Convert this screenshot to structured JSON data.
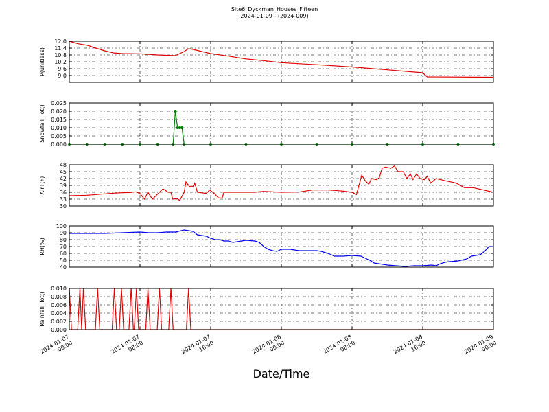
{
  "chart_data": [
    {
      "type": "line",
      "title": "Site6_Dyckman_Houses_Fifteen",
      "subtitle": "2024-01-09 - (2024-009)",
      "ylabel": "P(unitless)",
      "color": "#e00000",
      "grid": true,
      "xlim": [
        "2024-01-07 00:00",
        "2024-01-09 00:00"
      ],
      "xticks": [
        "2024-01-07 00:00",
        "2024-01-07 08:00",
        "2024-01-07 16:00",
        "2024-01-08 00:00",
        "2024-01-08 08:00",
        "2024-01-08 16:00",
        "2024-01-09 00:00"
      ],
      "ylim": [
        8.4,
        12.0
      ],
      "yticks": [
        {
          "value": 9.0,
          "label": "9.0"
        },
        9.6,
        10.2,
        10.8,
        11.4,
        {
          "value": 12.0,
          "label": "12.0"
        }
      ],
      "x": [
        "2024-01-07 00:00",
        "2024-01-07 01:00",
        "2024-01-07 02:00",
        "2024-01-07 03:00",
        "2024-01-07 04:00",
        "2024-01-07 05:00",
        "2024-01-07 06:00",
        "2024-01-07 08:00",
        "2024-01-07 10:00",
        "2024-01-07 12:00",
        "2024-01-07 13:00",
        "2024-01-07 13:30",
        "2024-01-07 14:00",
        "2024-01-07 15:00",
        "2024-01-07 16:00",
        "2024-01-07 18:00",
        "2024-01-07 20:00",
        "2024-01-07 22:00",
        "2024-01-08 00:00",
        "2024-01-08 04:00",
        "2024-01-08 08:00",
        "2024-01-08 12:00",
        "2024-01-08 16:00",
        "2024-01-08 16:30",
        "2024-01-09 00:00"
      ],
      "values": [
        12.0,
        11.78,
        11.65,
        11.4,
        11.16,
        10.98,
        10.92,
        10.9,
        10.8,
        10.74,
        11.1,
        11.35,
        11.28,
        11.1,
        10.92,
        10.7,
        10.45,
        10.3,
        10.12,
        9.95,
        9.75,
        9.5,
        9.24,
        8.88,
        8.85
      ]
    },
    {
      "type": "line",
      "ylabel": "Snowfall_Tot()",
      "color": "#007f00",
      "marker": true,
      "grid": true,
      "xlim": [
        "2024-01-07 00:00",
        "2024-01-09 00:00"
      ],
      "xticks": [
        "2024-01-07 00:00",
        "2024-01-07 08:00",
        "2024-01-07 16:00",
        "2024-01-08 00:00",
        "2024-01-08 08:00",
        "2024-01-08 16:00",
        "2024-01-09 00:00"
      ],
      "ylim": [
        0,
        0.025
      ],
      "yticks": [
        {
          "value": 0,
          "label": "0.000"
        },
        0.005,
        {
          "value": 0.01,
          "label": "0.010"
        },
        0.015,
        {
          "value": 0.02,
          "label": "0.020"
        },
        0.025
      ],
      "x": [
        "2024-01-07 00:00",
        "2024-01-07 02:00",
        "2024-01-07 04:00",
        "2024-01-07 06:00",
        "2024-01-07 08:00",
        "2024-01-07 10:00",
        "2024-01-07 11:45",
        "2024-01-07 12:00",
        "2024-01-07 12:15",
        "2024-01-07 12:30",
        "2024-01-07 12:45",
        "2024-01-07 13:00",
        "2024-01-07 16:00",
        "2024-01-07 20:00",
        "2024-01-08 00:00",
        "2024-01-08 04:00",
        "2024-01-08 08:00",
        "2024-01-08 12:00",
        "2024-01-08 16:00",
        "2024-01-08 20:00",
        "2024-01-09 00:00"
      ],
      "values": [
        0,
        0,
        0,
        0,
        0,
        0,
        0,
        0.02,
        0.01,
        0.01,
        0.01,
        0,
        0,
        0,
        0,
        0,
        0,
        0,
        0,
        0,
        0
      ]
    },
    {
      "type": "line",
      "ylabel": "AirT(F)",
      "color": "#e00000",
      "grid": true,
      "xlim": [
        "2024-01-07 00:00",
        "2024-01-09 00:00"
      ],
      "xticks": [
        "2024-01-07 00:00",
        "2024-01-07 08:00",
        "2024-01-07 16:00",
        "2024-01-08 00:00",
        "2024-01-08 08:00",
        "2024-01-08 16:00",
        "2024-01-09 00:00"
      ],
      "ylim": [
        30,
        48
      ],
      "yticks": [
        30,
        33,
        36,
        39,
        42,
        45,
        48
      ],
      "x": [
        "2024-01-07 00:00",
        "2024-01-07 01:00",
        "2024-01-07 02:00",
        "2024-01-07 03:00",
        "2024-01-07 04:00",
        "2024-01-07 05:00",
        "2024-01-07 06:00",
        "2024-01-07 07:00",
        "2024-01-07 07:30",
        "2024-01-07 08:00",
        "2024-01-07 08:30",
        "2024-01-07 08:54",
        "2024-01-07 09:24",
        "2024-01-07 09:48",
        "2024-01-07 10:12",
        "2024-01-07 10:36",
        "2024-01-07 11:12",
        "2024-01-07 11:30",
        "2024-01-07 11:42",
        "2024-01-07 12:12",
        "2024-01-07 12:30",
        "2024-01-07 13:00",
        "2024-01-07 13:12",
        "2024-01-07 13:36",
        "2024-01-07 14:00",
        "2024-01-07 14:12",
        "2024-01-07 14:30",
        "2024-01-07 15:30",
        "2024-01-07 15:54",
        "2024-01-07 16:24",
        "2024-01-07 16:54",
        "2024-01-07 17:18",
        "2024-01-07 17:30",
        "2024-01-07 19:00",
        "2024-01-07 21:00",
        "2024-01-07 22:00",
        "2024-01-08 00:00",
        "2024-01-08 02:00",
        "2024-01-08 03:30",
        "2024-01-08 05:24",
        "2024-01-08 07:00",
        "2024-01-08 08:00",
        "2024-01-08 08:30",
        "2024-01-08 09:06",
        "2024-01-08 09:30",
        "2024-01-08 09:54",
        "2024-01-08 10:12",
        "2024-01-08 10:48",
        "2024-01-08 11:06",
        "2024-01-08 11:24",
        "2024-01-08 11:48",
        "2024-01-08 12:24",
        "2024-01-08 12:48",
        "2024-01-08 13:12",
        "2024-01-08 13:48",
        "2024-01-08 14:12",
        "2024-01-08 14:36",
        "2024-01-08 14:54",
        "2024-01-08 15:18",
        "2024-01-08 15:42",
        "2024-01-08 16:12",
        "2024-01-08 16:30",
        "2024-01-08 16:54",
        "2024-01-08 17:30",
        "2024-01-08 18:36",
        "2024-01-08 19:48",
        "2024-01-08 20:42",
        "2024-01-08 21:42",
        "2024-01-08 22:54",
        "2024-01-09 00:00"
      ],
      "values": [
        34.5,
        34.6,
        34.7,
        35,
        35.3,
        35.6,
        35.8,
        35.9,
        36.2,
        35.5,
        33,
        36,
        33,
        34.5,
        36,
        37.5,
        36,
        36,
        33,
        33.2,
        32.5,
        36,
        40.5,
        38.5,
        38.5,
        40,
        36,
        35.5,
        37,
        35.5,
        33.5,
        33.5,
        36,
        36,
        36,
        36.4,
        36,
        36.1,
        37,
        37,
        36.5,
        36,
        35,
        43.5,
        41,
        39.5,
        42,
        41.5,
        42.5,
        46.5,
        47,
        46.5,
        47.5,
        45,
        45,
        42,
        44,
        41.5,
        44,
        42,
        41.5,
        43,
        40,
        42,
        41,
        40,
        38,
        38,
        37,
        36
      ]
    },
    {
      "type": "line",
      "ylabel": "RH(%)",
      "color": "#0000ee",
      "grid": true,
      "xlim": [
        "2024-01-07 00:00",
        "2024-01-09 00:00"
      ],
      "xticks": [
        "2024-01-07 00:00",
        "2024-01-07 08:00",
        "2024-01-07 16:00",
        "2024-01-08 00:00",
        "2024-01-08 08:00",
        "2024-01-08 16:00",
        "2024-01-09 00:00"
      ],
      "ylim": [
        40,
        100
      ],
      "yticks": [
        40,
        50,
        60,
        70,
        80,
        90,
        100
      ],
      "x": [
        "2024-01-07 00:00",
        "2024-01-07 04:00",
        "2024-01-07 08:00",
        "2024-01-07 09:00",
        "2024-01-07 10:00",
        "2024-01-07 11:00",
        "2024-01-07 12:00",
        "2024-01-07 13:00",
        "2024-01-07 14:00",
        "2024-01-07 14:30",
        "2024-01-07 15:30",
        "2024-01-07 16:00",
        "2024-01-07 16:30",
        "2024-01-07 17:00",
        "2024-01-07 17:30",
        "2024-01-07 18:00",
        "2024-01-07 18:30",
        "2024-01-07 19:00",
        "2024-01-07 20:00",
        "2024-01-07 21:00",
        "2024-01-07 21:30",
        "2024-01-07 22:00",
        "2024-01-07 22:30",
        "2024-01-07 23:00",
        "2024-01-07 23:30",
        "2024-01-08 00:00",
        "2024-01-08 01:00",
        "2024-01-08 02:00",
        "2024-01-08 04:00",
        "2024-01-08 04:30",
        "2024-01-08 05:00",
        "2024-01-08 05:30",
        "2024-01-08 06:00",
        "2024-01-08 07:00",
        "2024-01-08 08:00",
        "2024-01-08 09:00",
        "2024-01-08 09:30",
        "2024-01-08 10:00",
        "2024-01-08 10:30",
        "2024-01-08 11:00",
        "2024-01-08 11:30",
        "2024-01-08 12:00",
        "2024-01-08 13:00",
        "2024-01-08 14:00",
        "2024-01-08 15:00",
        "2024-01-08 16:00",
        "2024-01-08 17:00",
        "2024-01-08 17:30",
        "2024-01-08 18:00",
        "2024-01-08 18:30",
        "2024-01-08 19:00",
        "2024-01-08 20:00",
        "2024-01-08 21:00",
        "2024-01-08 21:30",
        "2024-01-08 22:00",
        "2024-01-08 22:30",
        "2024-01-08 23:00",
        "2024-01-08 23:30",
        "2024-01-09 00:00"
      ],
      "values": [
        89,
        89,
        91,
        90,
        90,
        91,
        91,
        94,
        92,
        87,
        85,
        82,
        80,
        80,
        78,
        78,
        76,
        77,
        79,
        78,
        76,
        70,
        66,
        64,
        63,
        66,
        66,
        64,
        64,
        63,
        61,
        59,
        56,
        56,
        57,
        56,
        53,
        50,
        46,
        45,
        44,
        43,
        42,
        41,
        42,
        42,
        43,
        42,
        45,
        47,
        48,
        49,
        52,
        56,
        57,
        58,
        63,
        70,
        70
      ]
    },
    {
      "type": "line",
      "ylabel": "Rainfall_Tot()",
      "xlabel": "Date/Time",
      "color": "#e00000",
      "grid": true,
      "xlim": [
        "2024-01-07 00:00",
        "2024-01-09 00:00"
      ],
      "xticks": [
        "2024-01-07 00:00",
        "2024-01-07 08:00",
        "2024-01-07 16:00",
        "2024-01-08 00:00",
        "2024-01-08 08:00",
        "2024-01-08 16:00",
        "2024-01-09 00:00"
      ],
      "ylim": [
        0,
        0.01
      ],
      "yticks": [
        {
          "value": 0,
          "label": "0.000"
        },
        {
          "value": 0.002,
          "label": "0.002"
        },
        {
          "value": 0.004,
          "label": "0.004"
        },
        {
          "value": 0.006,
          "label": "0.006"
        },
        {
          "value": 0.008,
          "label": "0.008"
        },
        {
          "value": 0.01,
          "label": "0.010"
        }
      ],
      "x": [
        "2024-01-07 00:00",
        "2024-01-07 00:15",
        "2024-01-07 00:57",
        "2024-01-07 01:12",
        "2024-01-07 01:24",
        "2024-01-07 01:36",
        "2024-01-07 01:51",
        "2024-01-07 02:57",
        "2024-01-07 03:12",
        "2024-01-07 03:27",
        "2024-01-07 04:51",
        "2024-01-07 05:06",
        "2024-01-07 05:21",
        "2024-01-07 05:39",
        "2024-01-07 05:54",
        "2024-01-07 06:09",
        "2024-01-07 06:45",
        "2024-01-07 07:00",
        "2024-01-07 07:15",
        "2024-01-07 07:21",
        "2024-01-07 07:36",
        "2024-01-07 07:51",
        "2024-01-07 08:39",
        "2024-01-07 08:54",
        "2024-01-07 09:09",
        "2024-01-07 09:57",
        "2024-01-07 10:12",
        "2024-01-07 10:27",
        "2024-01-07 11:15",
        "2024-01-07 11:30",
        "2024-01-07 11:45",
        "2024-01-07 13:15",
        "2024-01-07 13:30",
        "2024-01-07 13:45",
        "2024-01-08 00:00",
        "2024-01-09 00:00"
      ],
      "values": [
        0.01,
        0,
        0,
        0.01,
        0,
        0.01,
        0,
        0,
        0.01,
        0,
        0,
        0.01,
        0,
        0,
        0.01,
        0,
        0,
        0.01,
        0,
        0,
        0.01,
        0,
        0,
        0.01,
        0,
        0,
        0.01,
        0,
        0,
        0.01,
        0,
        0,
        0.01,
        0,
        0,
        0
      ]
    }
  ]
}
